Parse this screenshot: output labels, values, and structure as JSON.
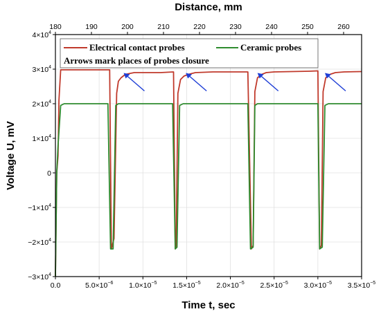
{
  "chart_data": {
    "type": "line",
    "xlabel": "Time t, sec",
    "ylabel": "Voltage U, mV",
    "x2label": "Distance, mm",
    "xlim": [
      0,
      3.5e-05
    ],
    "ylim": [
      -30000,
      40000
    ],
    "x2lim": [
      180,
      265
    ],
    "grid": true,
    "x_ticks": [
      {
        "value": 0,
        "label": "0.0"
      },
      {
        "value": 5e-06,
        "label": "5.0×10",
        "exp": "−6"
      },
      {
        "value": 1e-05,
        "label": "1.0×10",
        "exp": "−5"
      },
      {
        "value": 1.5e-05,
        "label": "1.5×10",
        "exp": "−5"
      },
      {
        "value": 2e-05,
        "label": "2.0×10",
        "exp": "−5"
      },
      {
        "value": 2.5e-05,
        "label": "2.5×10",
        "exp": "−5"
      },
      {
        "value": 3e-05,
        "label": "3.0×10",
        "exp": "−5"
      },
      {
        "value": 3.5e-05,
        "label": "3.5×10",
        "exp": "−5"
      }
    ],
    "y_ticks": [
      {
        "value": -30000,
        "label": "−3×10",
        "exp": "4"
      },
      {
        "value": -20000,
        "label": "−2×10",
        "exp": "4"
      },
      {
        "value": -10000,
        "label": "−1×10",
        "exp": "4"
      },
      {
        "value": 0,
        "label": "0",
        "exp": ""
      },
      {
        "value": 10000,
        "label": "1×10",
        "exp": "4"
      },
      {
        "value": 20000,
        "label": "2×10",
        "exp": "4"
      },
      {
        "value": 30000,
        "label": "3×10",
        "exp": "4"
      },
      {
        "value": 40000,
        "label": "4×10",
        "exp": "4"
      }
    ],
    "x2_ticks": [
      {
        "value": 180,
        "label": "180"
      },
      {
        "value": 190,
        "label": "190"
      },
      {
        "value": 200,
        "label": "200"
      },
      {
        "value": 210,
        "label": "210"
      },
      {
        "value": 220,
        "label": "220"
      },
      {
        "value": 230,
        "label": "230"
      },
      {
        "value": 240,
        "label": "240"
      },
      {
        "value": 250,
        "label": "250"
      },
      {
        "value": 260,
        "label": "260"
      }
    ],
    "legend": {
      "placement": "top",
      "entries": [
        "Electrical contact probes",
        "Ceramic probes"
      ],
      "note": "Arrows mark places of probes closure"
    },
    "series": [
      {
        "name": "Electrical contact probes",
        "color": "#c0392b",
        "x": [
          0,
          1.5e-07,
          3e-07,
          4e-07,
          6e-07,
          1e-06,
          2e-06,
          4e-06,
          6.2e-06,
          6.4e-06,
          6.7e-06,
          7e-06,
          7.2e-06,
          7.5e-06,
          8e-06,
          9e-06,
          1e-05,
          1.1e-05,
          1.2e-05,
          1.35e-05,
          1.37e-05,
          1.38e-05,
          1.4e-05,
          1.43e-05,
          1.47e-05,
          1.52e-05,
          1.6e-05,
          1.8e-05,
          2e-05,
          2.2e-05,
          2.24e-05,
          2.26e-05,
          2.28e-05,
          2.31e-05,
          2.36e-05,
          2.41e-05,
          2.5e-05,
          2.7e-05,
          2.9e-05,
          3e-05,
          3.02e-05,
          3.04e-05,
          3.06e-05,
          3.09e-05,
          3.14e-05,
          3.2e-05,
          3.3e-05,
          3.5e-05
        ],
        "y": [
          -30000,
          0,
          5000,
          21000,
          29800,
          29800,
          29800,
          29800,
          29800,
          -22000,
          -19000,
          23000,
          26500,
          27500,
          28500,
          29000,
          29000,
          29000,
          29000,
          29200,
          -22000,
          -21000,
          23000,
          27000,
          28000,
          28500,
          29000,
          29200,
          29200,
          29200,
          -22000,
          -21000,
          23500,
          27500,
          28500,
          29000,
          29200,
          29300,
          29400,
          29500,
          -22000,
          -21000,
          23500,
          27500,
          28500,
          29000,
          29200,
          29300
        ]
      },
      {
        "name": "Ceramic probes",
        "color": "#2e8b2e",
        "x": [
          0,
          1.5e-07,
          3e-07,
          6e-07,
          1e-06,
          2e-06,
          4e-06,
          6e-06,
          6.3e-06,
          6.6e-06,
          6.9e-06,
          7.2e-06,
          8e-06,
          1e-05,
          1.2e-05,
          1.34e-05,
          1.37e-05,
          1.39e-05,
          1.42e-05,
          1.46e-05,
          1.6e-05,
          1.8e-05,
          2e-05,
          2.2e-05,
          2.23e-05,
          2.26e-05,
          2.28e-05,
          2.31e-05,
          2.35e-05,
          2.5e-05,
          2.7e-05,
          2.9e-05,
          3e-05,
          3.02e-05,
          3.05e-05,
          3.08e-05,
          3.12e-05,
          3.2e-05,
          3.35e-05,
          3.5e-05
        ],
        "y": [
          -30000,
          0,
          8000,
          19500,
          20000,
          20000,
          20000,
          20000,
          -22000,
          -22000,
          19500,
          20000,
          20000,
          20000,
          20000,
          20000,
          -22000,
          -21500,
          19500,
          20000,
          20000,
          20000,
          20000,
          20000,
          -22000,
          -21500,
          19500,
          20000,
          20000,
          20000,
          20000,
          20000,
          20000,
          -22000,
          -21500,
          19500,
          20000,
          20000,
          20000,
          20000
        ]
      }
    ],
    "arrows_at_x": [
      7.8e-06,
      1.49e-05,
      2.31e-05,
      3.08e-05
    ],
    "arrow_color": "#1f3fd6"
  }
}
